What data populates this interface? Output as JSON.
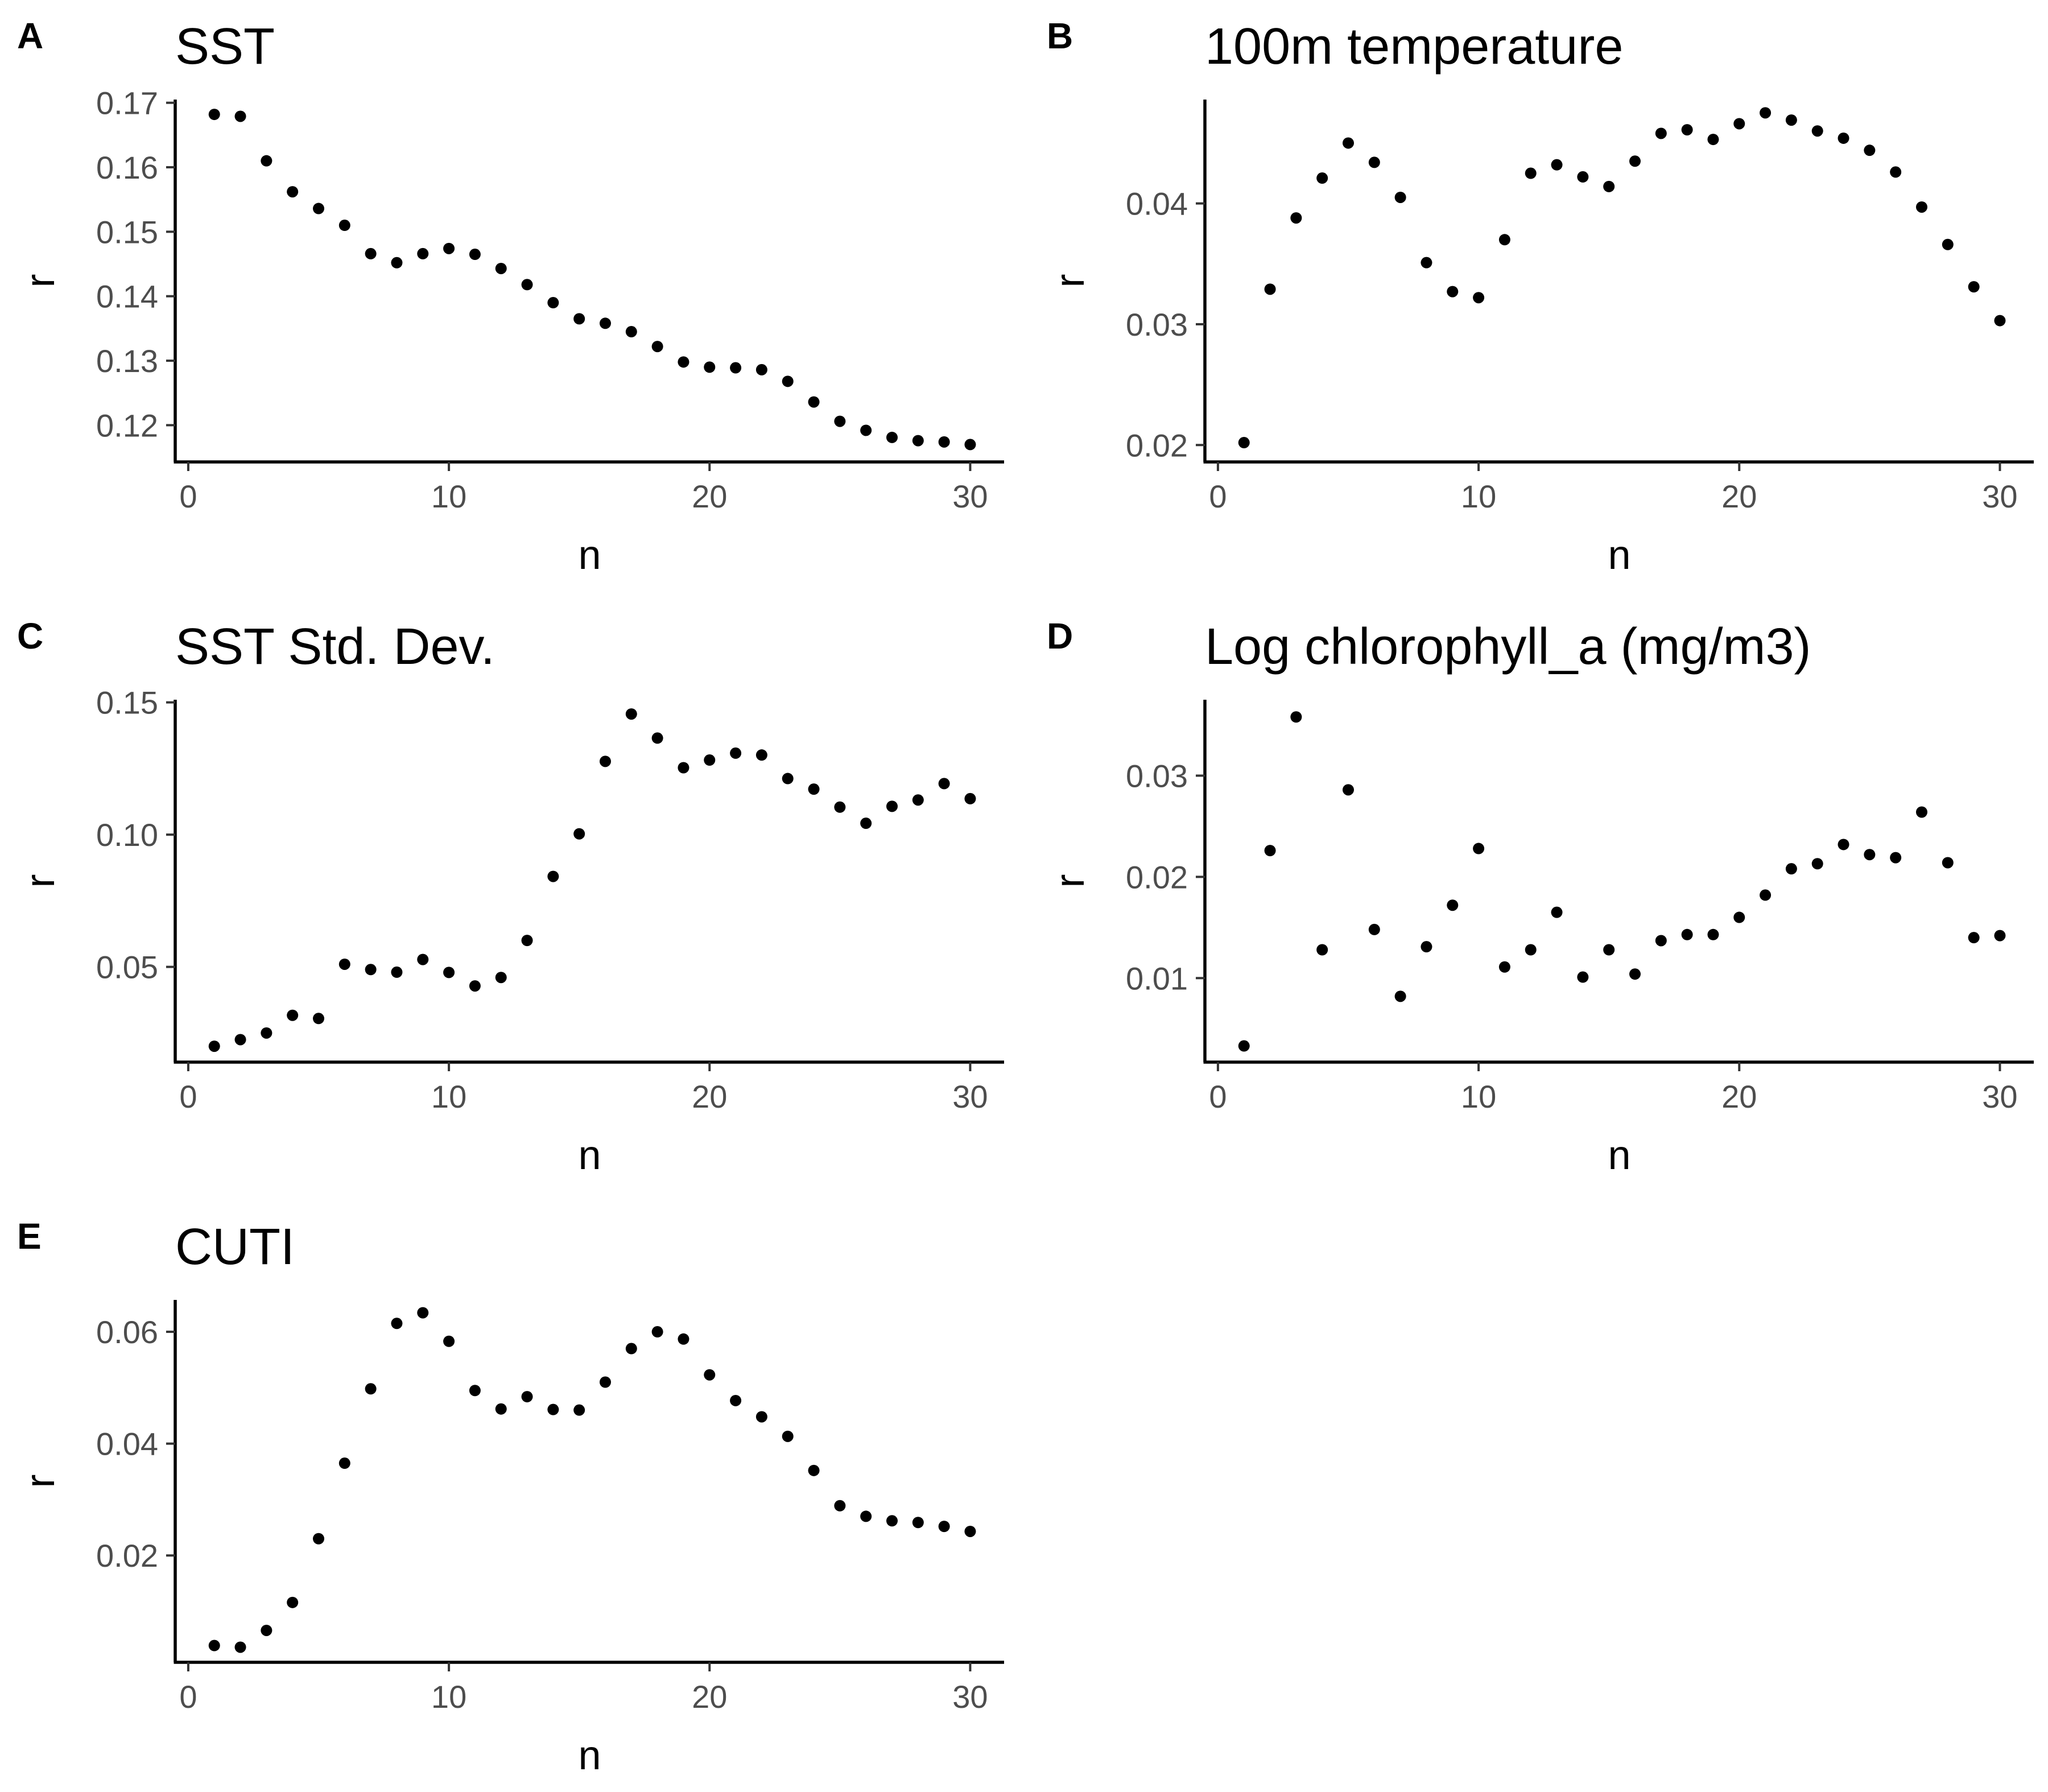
{
  "chart_data": [
    {
      "tag": "A",
      "type": "scatter",
      "title": "SST",
      "xlabel": "n",
      "ylabel": "r",
      "xlim": [
        -0.5,
        31.3
      ],
      "xticks": [
        0,
        10,
        20,
        30
      ],
      "ylim": [
        0.1143,
        0.1705
      ],
      "yticks": [
        0.12,
        0.13,
        0.14,
        0.15,
        0.16,
        0.17
      ],
      "ytick_labels": [
        "0.12",
        "0.13",
        "0.14",
        "0.15",
        "0.16",
        "0.17"
      ],
      "x": [
        1,
        2,
        3,
        4,
        5,
        6,
        7,
        8,
        9,
        10,
        11,
        12,
        13,
        14,
        15,
        16,
        17,
        18,
        19,
        20,
        21,
        22,
        23,
        24,
        25,
        26,
        27,
        28,
        29,
        30
      ],
      "y": [
        0.1682,
        0.1679,
        0.161,
        0.1562,
        0.1536,
        0.151,
        0.1466,
        0.1452,
        0.1466,
        0.1474,
        0.1465,
        0.1443,
        0.1418,
        0.139,
        0.1365,
        0.1358,
        0.1345,
        0.1322,
        0.1298,
        0.129,
        0.1289,
        0.1286,
        0.1268,
        0.1236,
        0.1206,
        0.1192,
        0.1181,
        0.1176,
        0.1174,
        0.117
      ]
    },
    {
      "tag": "B",
      "type": "scatter",
      "title": "100m temperature",
      "xlabel": "n",
      "ylabel": "r",
      "xlim": [
        -0.5,
        31.3
      ],
      "xticks": [
        0,
        10,
        20,
        30
      ],
      "ylim": [
        0.0186,
        0.0486
      ],
      "yticks": [
        0.02,
        0.03,
        0.04
      ],
      "ytick_labels": [
        "0.02",
        "0.03",
        "0.04"
      ],
      "x": [
        1,
        2,
        3,
        4,
        5,
        6,
        7,
        8,
        9,
        10,
        11,
        12,
        13,
        14,
        15,
        16,
        17,
        18,
        19,
        20,
        21,
        22,
        23,
        24,
        25,
        26,
        27,
        28,
        29,
        30
      ],
      "y": [
        0.0202,
        0.0329,
        0.0388,
        0.0421,
        0.045,
        0.0434,
        0.0405,
        0.0351,
        0.0327,
        0.0322,
        0.037,
        0.0425,
        0.0432,
        0.0422,
        0.0414,
        0.0435,
        0.0458,
        0.0461,
        0.0453,
        0.0466,
        0.0475,
        0.0469,
        0.046,
        0.0454,
        0.0444,
        0.0426,
        0.0397,
        0.0366,
        0.0331,
        0.0303
      ]
    },
    {
      "tag": "C",
      "type": "scatter",
      "title": "SST Std. Dev.",
      "xlabel": "n",
      "ylabel": "r",
      "xlim": [
        -0.5,
        31.3
      ],
      "xticks": [
        0,
        10,
        20,
        30
      ],
      "ylim": [
        0.014,
        0.151
      ],
      "yticks": [
        0.05,
        0.1,
        0.15
      ],
      "ytick_labels": [
        "0.05",
        "0.10",
        "0.15"
      ],
      "x": [
        1,
        2,
        3,
        4,
        5,
        6,
        7,
        8,
        9,
        10,
        11,
        12,
        13,
        14,
        15,
        16,
        17,
        18,
        19,
        20,
        21,
        22,
        23,
        24,
        25,
        26,
        27,
        28,
        29,
        30
      ],
      "y": [
        0.02,
        0.0225,
        0.025,
        0.0317,
        0.0305,
        0.051,
        0.049,
        0.048,
        0.0528,
        0.0479,
        0.0428,
        0.046,
        0.06,
        0.0842,
        0.1003,
        0.1277,
        0.1456,
        0.1365,
        0.1253,
        0.1282,
        0.1308,
        0.1301,
        0.1212,
        0.1172,
        0.1104,
        0.1043,
        0.1107,
        0.1131,
        0.1193,
        0.1136
      ]
    },
    {
      "tag": "D",
      "type": "scatter",
      "title": "Log chlorophyll_a (mg/m3)",
      "xlabel": "n",
      "ylabel": "r",
      "xlim": [
        -0.5,
        31.3
      ],
      "xticks": [
        0,
        10,
        20,
        30
      ],
      "ylim": [
        0.0017,
        0.0375
      ],
      "yticks": [
        0.01,
        0.02,
        0.03
      ],
      "ytick_labels": [
        "0.01",
        "0.02",
        "0.03"
      ],
      "x": [
        1,
        2,
        3,
        4,
        5,
        6,
        7,
        8,
        9,
        10,
        11,
        12,
        13,
        14,
        15,
        16,
        17,
        18,
        19,
        20,
        21,
        22,
        23,
        24,
        25,
        26,
        27,
        28,
        29,
        30
      ],
      "y": [
        0.0033,
        0.0226,
        0.0358,
        0.0128,
        0.0286,
        0.0148,
        0.0082,
        0.0131,
        0.0172,
        0.0228,
        0.0111,
        0.0128,
        0.0165,
        0.0101,
        0.0128,
        0.0104,
        0.0137,
        0.0143,
        0.0143,
        0.016,
        0.0182,
        0.0208,
        0.0213,
        0.0232,
        0.0222,
        0.0219,
        0.0264,
        0.0214,
        0.014,
        0.0142
      ]
    },
    {
      "tag": "E",
      "type": "scatter",
      "title": "CUTI",
      "xlabel": "n",
      "ylabel": "r",
      "xlim": [
        -0.5,
        31.3
      ],
      "xticks": [
        0,
        10,
        20,
        30
      ],
      "ylim": [
        0.0009,
        0.0657
      ],
      "yticks": [
        0.02,
        0.04,
        0.06
      ],
      "ytick_labels": [
        "0.02",
        "0.04",
        "0.06"
      ],
      "x": [
        1,
        2,
        3,
        4,
        5,
        6,
        7,
        8,
        9,
        10,
        11,
        12,
        13,
        14,
        15,
        16,
        17,
        18,
        19,
        20,
        21,
        22,
        23,
        24,
        25,
        26,
        27,
        28,
        29,
        30
      ],
      "y": [
        0.0039,
        0.0036,
        0.0066,
        0.0116,
        0.023,
        0.0365,
        0.0498,
        0.0615,
        0.0634,
        0.0583,
        0.0495,
        0.0462,
        0.0484,
        0.0461,
        0.046,
        0.051,
        0.057,
        0.06,
        0.0587,
        0.0523,
        0.0477,
        0.0448,
        0.0413,
        0.0352,
        0.0289,
        0.027,
        0.0262,
        0.0259,
        0.0252,
        0.0243
      ]
    }
  ]
}
